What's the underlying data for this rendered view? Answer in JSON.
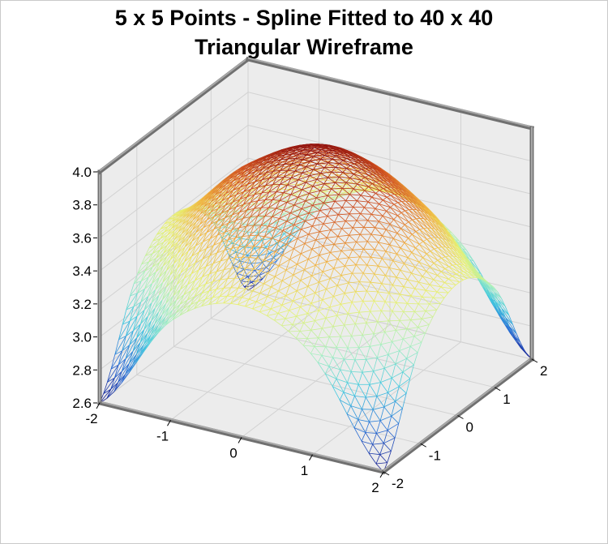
{
  "chart_data": {
    "type": "surface3d",
    "title_lines": [
      "5 x 5 Points - Spline Fitted to 40 x 40",
      "Triangular Wireframe"
    ],
    "xlabel": "",
    "ylabel": "",
    "zlabel": "",
    "x_ticks": [
      "-2",
      "-1",
      "0",
      "1",
      "2"
    ],
    "y_ticks": [
      "-2",
      "-1",
      "0",
      "1",
      "2"
    ],
    "z_ticks": [
      "2.6",
      "2.8",
      "3.0",
      "3.2",
      "3.4",
      "3.6",
      "3.8",
      "4.0"
    ],
    "xlim": [
      -2,
      2
    ],
    "ylim": [
      -2,
      2
    ],
    "zlim": [
      2.6,
      4.0
    ],
    "grid": true,
    "wireframe": "triangular",
    "fitted_grid_size": [
      40,
      40
    ],
    "source_grid_size": [
      5,
      5
    ],
    "source_points": {
      "x": [
        -2,
        -1,
        0,
        1,
        2
      ],
      "y": [
        -2,
        -1,
        0,
        1,
        2
      ],
      "z": [
        [
          2.6,
          3.2,
          3.4,
          3.2,
          2.6
        ],
        [
          3.2,
          3.6,
          3.8,
          3.6,
          3.2
        ],
        [
          3.4,
          3.8,
          4.0,
          3.8,
          3.4
        ],
        [
          3.2,
          3.6,
          3.8,
          3.6,
          3.2
        ],
        [
          2.6,
          3.2,
          3.4,
          3.2,
          2.6
        ]
      ]
    },
    "colormap": [
      "#1a1a8c",
      "#2a6fd6",
      "#40c8e0",
      "#a8f0c0",
      "#e8f070",
      "#f0b040",
      "#d05020",
      "#8c0f0f"
    ]
  }
}
